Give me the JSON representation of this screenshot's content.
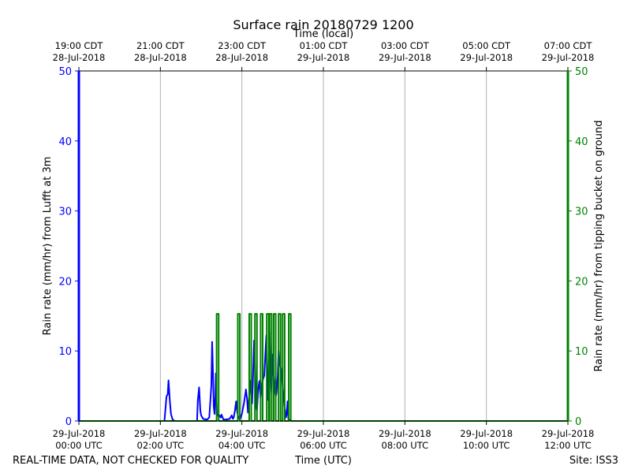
{
  "chart_data": {
    "type": "line",
    "title": "Surface rain 20180729 1200",
    "top_axis_label": "Time (local)",
    "xlabel": "Time (UTC)",
    "ylabel_left": "Rain rate (mm/hr) from Lufft at 3m",
    "ylabel_right": "Rain rate (mm/hr) from tipping bucket on ground",
    "footer_left": "REAL-TIME DATA, NOT CHECKED FOR QUALITY",
    "footer_right": "Site: ISS3",
    "x_range_hours_utc": [
      0,
      12
    ],
    "ylim_left": [
      0,
      50
    ],
    "ylim_right": [
      0,
      50
    ],
    "grid": "vertical at x ticks",
    "x_ticks_bottom": [
      {
        "t": 0,
        "line1": "29-Jul-2018",
        "line2": "00:00 UTC"
      },
      {
        "t": 2,
        "line1": "29-Jul-2018",
        "line2": "02:00 UTC"
      },
      {
        "t": 4,
        "line1": "29-Jul-2018",
        "line2": "04:00 UTC"
      },
      {
        "t": 6,
        "line1": "29-Jul-2018",
        "line2": "06:00 UTC"
      },
      {
        "t": 8,
        "line1": "29-Jul-2018",
        "line2": "08:00 UTC"
      },
      {
        "t": 10,
        "line1": "29-Jul-2018",
        "line2": "10:00 UTC"
      },
      {
        "t": 12,
        "line1": "29-Jul-2018",
        "line2": "12:00 UTC"
      }
    ],
    "x_ticks_top": [
      {
        "t": 0,
        "line1": "19:00 CDT",
        "line2": "28-Jul-2018"
      },
      {
        "t": 2,
        "line1": "21:00 CDT",
        "line2": "28-Jul-2018"
      },
      {
        "t": 4,
        "line1": "23:00 CDT",
        "line2": "28-Jul-2018"
      },
      {
        "t": 6,
        "line1": "01:00 CDT",
        "line2": "29-Jul-2018"
      },
      {
        "t": 8,
        "line1": "03:00 CDT",
        "line2": "29-Jul-2018"
      },
      {
        "t": 10,
        "line1": "05:00 CDT",
        "line2": "29-Jul-2018"
      },
      {
        "t": 12,
        "line1": "07:00 CDT",
        "line2": "29-Jul-2018"
      }
    ],
    "y_ticks": [
      0,
      10,
      20,
      30,
      40,
      50
    ],
    "colors": {
      "lufft": "#0000ff",
      "bucket": "#008000",
      "grid": "#b0b0b0"
    },
    "series": [
      {
        "key": "lufft",
        "axis": "left",
        "x_hours": [
          0,
          2.1,
          2.15,
          2.18,
          2.2,
          2.23,
          2.26,
          2.3,
          2.35,
          2.5,
          2.9,
          2.92,
          2.95,
          2.98,
          3.0,
          3.05,
          3.15,
          3.2,
          3.25,
          3.27,
          3.29,
          3.31,
          3.33,
          3.35,
          3.36,
          3.37,
          3.39,
          3.42,
          3.45,
          3.48,
          3.5,
          3.52,
          3.55,
          3.6,
          3.7,
          3.75,
          3.78,
          3.8,
          3.83,
          3.86,
          3.88,
          3.9,
          3.93,
          3.96,
          4.0,
          4.05,
          4.1,
          4.13,
          4.15,
          4.18,
          4.22,
          4.25,
          4.27,
          4.3,
          4.33,
          4.35,
          4.37,
          4.4,
          4.43,
          4.46,
          4.49,
          4.52,
          4.55,
          4.58,
          4.6,
          4.63,
          4.66,
          4.68,
          4.7,
          4.73,
          4.75,
          4.78,
          4.8,
          4.83,
          4.85,
          4.88,
          4.9,
          4.93,
          4.96,
          5.0,
          5.03,
          5.06,
          5.08,
          5.1,
          5.12,
          5.14,
          5.2,
          5.5,
          12
        ],
        "values": [
          0,
          0,
          3.5,
          3.8,
          5.8,
          3.0,
          1.0,
          0.2,
          0,
          0,
          0,
          3.0,
          4.8,
          1.5,
          0.8,
          0.3,
          0.2,
          0.5,
          5.0,
          11.3,
          7.0,
          2.0,
          1.0,
          3.5,
          6.8,
          4.0,
          1.0,
          0.7,
          0.8,
          0.5,
          0.9,
          0.6,
          0.2,
          0.2,
          0.3,
          0.8,
          0.3,
          0.5,
          1.5,
          2.8,
          1.5,
          0.8,
          0.4,
          0.3,
          1.0,
          2.5,
          4.5,
          3.0,
          1.2,
          3.5,
          5.8,
          2.5,
          5.8,
          11.5,
          6.0,
          2.0,
          1.5,
          4.5,
          5.7,
          3.2,
          5.0,
          6.0,
          6.5,
          10.0,
          12.2,
          3.0,
          8.0,
          12.8,
          7.0,
          4.0,
          9.5,
          6.5,
          5.0,
          3.5,
          4.0,
          6.5,
          10.0,
          8.0,
          7.5,
          5.0,
          3.0,
          1.5,
          0.5,
          1.0,
          2.8,
          0.3,
          0,
          0,
          0
        ]
      },
      {
        "key": "bucket",
        "axis": "right",
        "x_hours": [
          0,
          3.38,
          3.38,
          3.43,
          3.43,
          3.9,
          3.9,
          3.95,
          3.95,
          4.18,
          4.18,
          4.23,
          4.23,
          4.32,
          4.32,
          4.37,
          4.37,
          4.46,
          4.46,
          4.51,
          4.51,
          4.61,
          4.61,
          4.66,
          4.66,
          4.68,
          4.68,
          4.73,
          4.73,
          4.78,
          4.78,
          4.83,
          4.83,
          4.9,
          4.9,
          4.95,
          4.95,
          5.0,
          5.0,
          5.05,
          5.05,
          5.15,
          5.15,
          5.2,
          5.2,
          12
        ],
        "values": [
          0,
          0,
          15.3,
          15.3,
          0,
          0,
          15.3,
          15.3,
          0,
          0,
          15.3,
          15.3,
          0,
          0,
          15.3,
          15.3,
          0,
          0,
          15.3,
          15.3,
          0,
          0,
          15.3,
          15.3,
          0,
          0,
          15.3,
          15.3,
          0,
          0,
          15.3,
          15.3,
          0,
          0,
          15.3,
          15.3,
          0,
          0,
          15.3,
          15.3,
          0,
          0,
          15.3,
          15.3,
          0,
          0
        ]
      }
    ]
  }
}
